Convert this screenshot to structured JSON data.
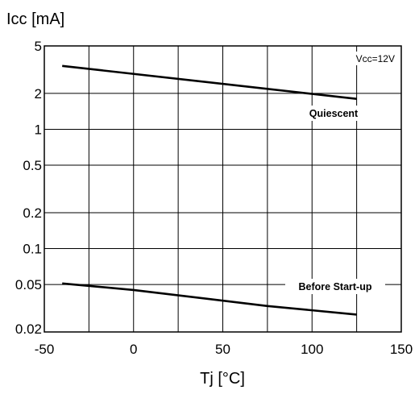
{
  "chart_data": {
    "type": "line",
    "ylabel": "Icc [mA]",
    "xlabel": "Tj [°C]",
    "xlim": [
      -50,
      150
    ],
    "ylim": [
      0.02,
      5
    ],
    "yscale": "log",
    "grid": true,
    "x_ticks": [
      "-50",
      "0",
      "50",
      "100",
      "150"
    ],
    "y_ticks": [
      {
        "value": 5,
        "label": "5"
      },
      {
        "value": 2,
        "label": "2"
      },
      {
        "value": 1,
        "label": "1"
      },
      {
        "value": 0.5,
        "label": "0.5"
      },
      {
        "value": 0.2,
        "label": "0.2"
      },
      {
        "value": 0.1,
        "label": "0.1"
      },
      {
        "value": 0.05,
        "label": "0.05"
      },
      {
        "value": 0.02,
        "label": "0.02"
      }
    ],
    "annotation": "Vcc=12V",
    "series": [
      {
        "name": "Quiescent",
        "x": [
          -40,
          125
        ],
        "y": [
          3.4,
          1.8
        ]
      },
      {
        "name": "Before Start-up",
        "x": [
          -40,
          0,
          75,
          125
        ],
        "y": [
          0.051,
          0.045,
          0.033,
          0.028
        ]
      }
    ]
  }
}
